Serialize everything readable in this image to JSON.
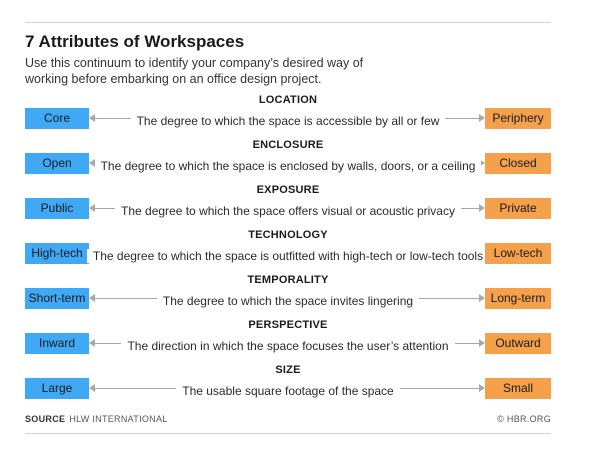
{
  "title": "7 Attributes of Workspaces",
  "subtitle": "Use this continuum to identify your company’s desired way of working before embarking on an office design project.",
  "colors": {
    "left_pole": "#3fa9f5",
    "right_pole": "#f5a04a",
    "axis": "#a8a8a8"
  },
  "attributes": [
    {
      "heading": "LOCATION",
      "left": "Core",
      "right": "Periphery",
      "description": "The degree to which the space is accessible by all or few"
    },
    {
      "heading": "ENCLOSURE",
      "left": "Open",
      "right": "Closed",
      "description": "The degree to which the space is enclosed by walls, doors, or a ceiling"
    },
    {
      "heading": "EXPOSURE",
      "left": "Public",
      "right": "Private",
      "description": "The degree to which the space offers visual or acoustic privacy"
    },
    {
      "heading": "TECHNOLOGY",
      "left": "High-tech",
      "right": "Low-tech",
      "description": "The degree to which the space is outfitted with high-tech or low-tech tools"
    },
    {
      "heading": "TEMPORALITY",
      "left": "Short-term",
      "right": "Long-term",
      "description": "The degree to which the space invites lingering"
    },
    {
      "heading": "PERSPECTIVE",
      "left": "Inward",
      "right": "Outward",
      "description": "The direction in which the space focuses the user’s attention"
    },
    {
      "heading": "SIZE",
      "left": "Large",
      "right": "Small",
      "description": "The usable square footage of the space"
    }
  ],
  "footer": {
    "source_label": "SOURCE",
    "source": "HLW INTERNATIONAL",
    "credit": "© HBR.ORG"
  }
}
